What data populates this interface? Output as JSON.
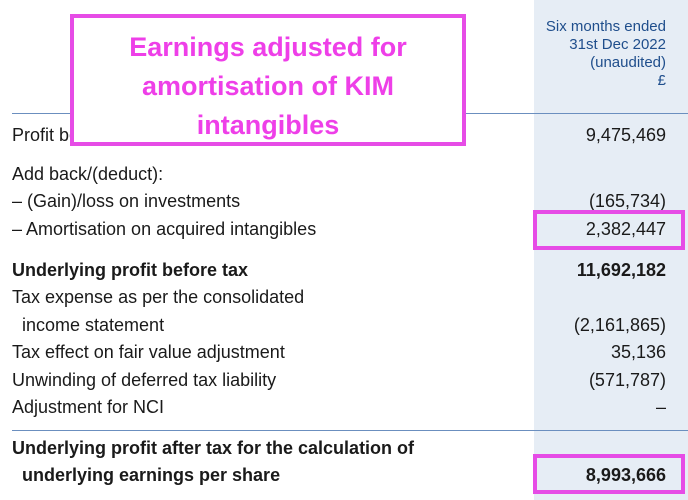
{
  "column": {
    "header": [
      "Six months ended",
      "31st Dec 2022",
      "(unaudited)",
      "£"
    ]
  },
  "callout": {
    "lines": [
      "Earnings adjusted for",
      "amortisation of KIM",
      "intangibles"
    ]
  },
  "rows": [
    {
      "label": "Profit be",
      "value": "9,475,469"
    },
    {
      "label": "Add back/(deduct):",
      "value": ""
    },
    {
      "label": "– (Gain)/loss on investments",
      "value": "(165,734)"
    },
    {
      "label": "– Amortisation on acquired intangibles",
      "value": "2,382,447"
    },
    {
      "label": "Underlying profit before tax",
      "value": "11,692,182"
    },
    {
      "label": "Tax expense as per the consolidated",
      "value": ""
    },
    {
      "label": "income statement",
      "value": "(2,161,865)"
    },
    {
      "label": "Tax effect on fair value adjustment",
      "value": "35,136"
    },
    {
      "label": "Unwinding of deferred tax liability",
      "value": "(571,787)"
    },
    {
      "label": "Adjustment for NCI",
      "value": "–"
    },
    {
      "label": "Underlying profit after tax for the calculation of",
      "value": ""
    },
    {
      "label": "underlying earnings per share",
      "value": "8,993,666"
    }
  ],
  "colors": {
    "highlight": "#e64ce6",
    "column_background": "#e6edf5",
    "header_text": "#1f4e8c"
  }
}
